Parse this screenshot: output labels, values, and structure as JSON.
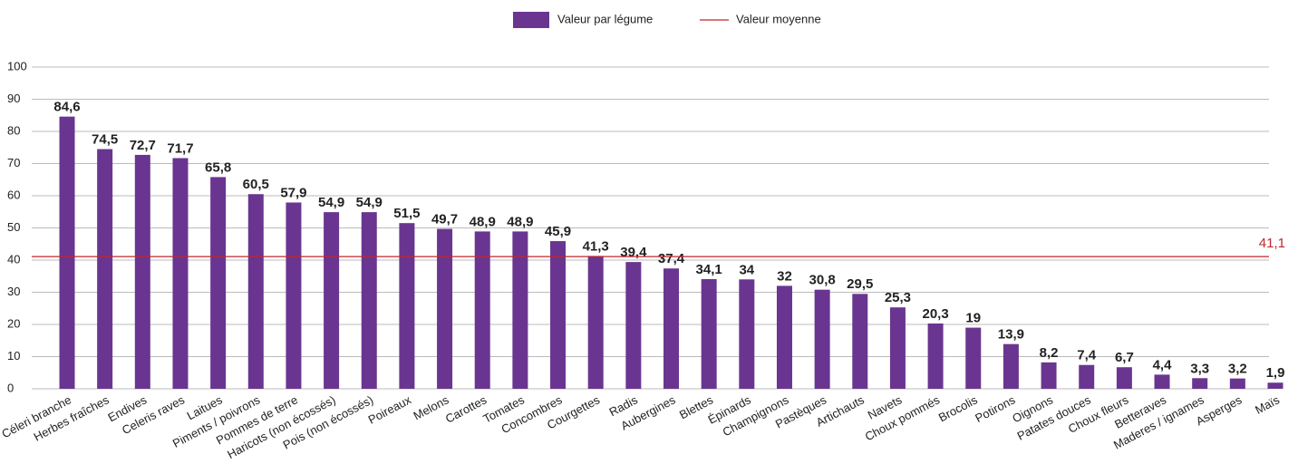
{
  "chart_data": {
    "type": "bar",
    "categories": [
      "Céleri branche",
      "Herbes fraîches",
      "Endives",
      "Celeris raves",
      "Laitues",
      "Piments / poivrons",
      "Pommes de terre",
      "Haricots (non écossés)",
      "Pois (non écossés)",
      "Poireaux",
      "Melons",
      "Carottes",
      "Tomates",
      "Concombres",
      "Courgettes",
      "Radis",
      "Aubergines",
      "Blettes",
      "Épinards",
      "Champignons",
      "Pastèques",
      "Artichauts",
      "Navets",
      "Choux pommés",
      "Brocolis",
      "Potirons",
      "Oignons",
      "Patates douces",
      "Choux fleurs",
      "Betteraves",
      "Maderes / ignames",
      "Asperges",
      "Maïs"
    ],
    "series": [
      {
        "name": "Valeur par légume",
        "color": "#6a3590",
        "values": [
          84.6,
          74.5,
          72.7,
          71.7,
          65.8,
          60.5,
          57.9,
          54.9,
          54.9,
          51.5,
          49.7,
          48.9,
          48.9,
          45.9,
          41.3,
          39.4,
          37.4,
          34.1,
          34,
          32,
          30.8,
          29.5,
          25.3,
          20.3,
          19,
          13.9,
          8.2,
          7.4,
          6.7,
          4.4,
          3.3,
          3.2,
          1.9
        ],
        "value_labels": [
          "84,6",
          "74,5",
          "72,7",
          "71,7",
          "65,8",
          "60,5",
          "57,9",
          "54,9",
          "54,9",
          "51,5",
          "49,7",
          "48,9",
          "48,9",
          "45,9",
          "41,3",
          "39,4",
          "37,4",
          "34,1",
          "34",
          "32",
          "30,8",
          "29,5",
          "25,3",
          "20,3",
          "19",
          "13,9",
          "8,2",
          "7,4",
          "6,7",
          "4,4",
          "3,3",
          "3,2",
          "1,9"
        ]
      }
    ],
    "average": {
      "name": "Valeur moyenne",
      "value": 41.1,
      "label": "41,1",
      "color": "#c0272d"
    },
    "ylim": [
      0,
      100
    ],
    "yticks": [
      0,
      10,
      20,
      30,
      40,
      50,
      60,
      70,
      80,
      90,
      100
    ],
    "grid": true,
    "legend": "top"
  }
}
